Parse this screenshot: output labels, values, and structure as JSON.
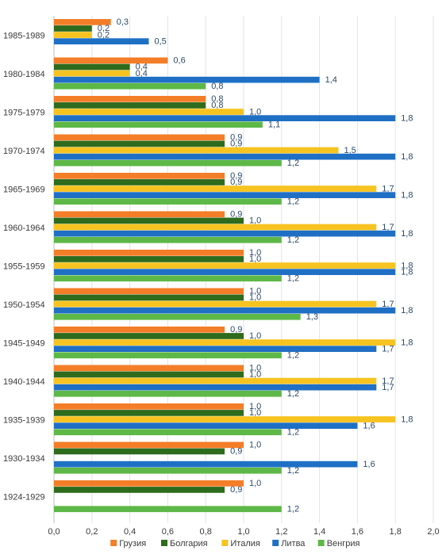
{
  "chart_data": {
    "type": "bar",
    "orientation": "horizontal",
    "categories": [
      "1985-1989",
      "1980-1984",
      "1975-1979",
      "1970-1974",
      "1965-1969",
      "1960-1964",
      "1955-1959",
      "1950-1954",
      "1945-1949",
      "1940-1944",
      "1935-1939",
      "1930-1934",
      "1924-1929"
    ],
    "series": [
      {
        "name": "Грузия",
        "color": "#F47D28",
        "values": [
          0.3,
          0.6,
          0.8,
          0.9,
          0.9,
          0.9,
          1.0,
          1.0,
          0.9,
          1.0,
          1.0,
          1.0,
          1.0
        ],
        "labels": [
          "0,3",
          "0,6",
          "0,8",
          "0,9",
          "0,9",
          "0,9",
          "1,0",
          "1,0",
          "0,9",
          "1,0",
          "1,0",
          "1,0",
          "1,0"
        ]
      },
      {
        "name": "Болгария",
        "color": "#2E6B1D",
        "values": [
          0.2,
          0.4,
          0.8,
          0.9,
          0.9,
          1.0,
          1.0,
          1.0,
          1.0,
          1.0,
          1.0,
          0.9,
          0.9
        ],
        "labels": [
          "0,2",
          "0,4",
          "0,8",
          "0,9",
          "0,9",
          "1,0",
          "1,0",
          "1,0",
          "1,0",
          "1,0",
          "1,0",
          "0,9",
          "0,9"
        ]
      },
      {
        "name": "Италия",
        "color": "#F7C320",
        "values": [
          0.2,
          0.4,
          1.0,
          1.5,
          1.7,
          1.7,
          1.8,
          1.7,
          1.8,
          1.7,
          1.8,
          null,
          null
        ],
        "labels": [
          "0,2",
          "0,4",
          "1,0",
          "1,5",
          "1,7",
          "1,7",
          "1,8",
          "1,7",
          "1,8",
          "1,7",
          "1,8",
          null,
          null
        ]
      },
      {
        "name": "Литва",
        "color": "#1F6FC5",
        "values": [
          0.5,
          1.4,
          1.8,
          1.8,
          1.8,
          1.8,
          1.8,
          1.8,
          1.7,
          1.7,
          1.6,
          1.6,
          null
        ],
        "labels": [
          "0,5",
          "1,4",
          "1,8",
          "1,8",
          "1,8",
          "1,8",
          "1,8",
          "1,8",
          "1,7",
          "1,7",
          "1,6",
          "1,6",
          null
        ]
      },
      {
        "name": "Венгрия",
        "color": "#5DB847",
        "values": [
          null,
          0.8,
          1.1,
          1.2,
          1.2,
          1.2,
          1.2,
          1.3,
          1.2,
          1.2,
          1.2,
          1.2,
          1.2
        ],
        "labels": [
          null,
          "0,8",
          "1,1",
          "1,2",
          "1,2",
          "1,2",
          "1,2",
          "1,3",
          "1,2",
          "1,2",
          "1,2",
          "1,2",
          "1,2"
        ]
      }
    ],
    "xlim": [
      0,
      2.0
    ],
    "xticks": [
      "0,0",
      "0,2",
      "0,4",
      "0,6",
      "0,8",
      "1,0",
      "1,2",
      "1,4",
      "1,6",
      "1,8",
      "2,0"
    ],
    "grid": true,
    "legend_position": "bottom",
    "title": "",
    "xlabel": "",
    "ylabel": ""
  }
}
